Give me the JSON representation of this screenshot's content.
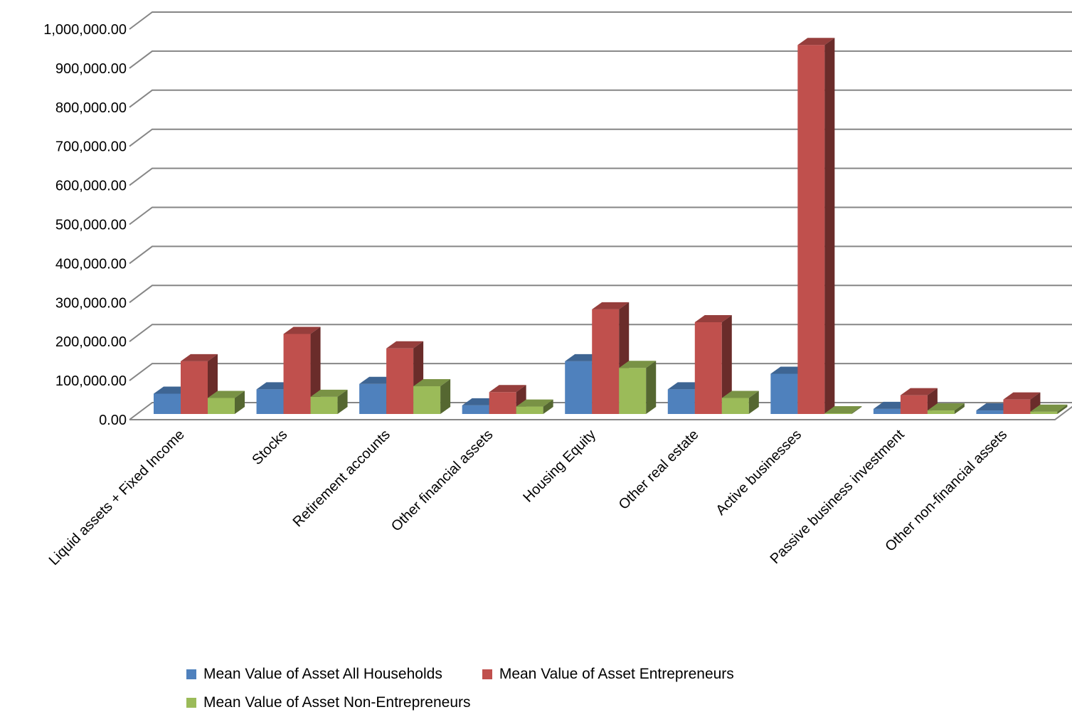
{
  "chart_data": {
    "type": "bar",
    "categories": [
      "Liquid assets + Fixed Income",
      "Stocks",
      "Retirement accounts",
      "Other financial assets",
      "Housing Equity",
      "Other real estate",
      "Active businesses",
      "Passive business investment",
      "Other non-financial assets"
    ],
    "series": [
      {
        "name": "Mean Value of Asset All Households",
        "color": "#4F81BD",
        "values": [
          52000,
          63000,
          77000,
          22000,
          135000,
          63000,
          103000,
          13000,
          9000
        ]
      },
      {
        "name": "Mean Value of Asset Entrepreneurs",
        "color": "#C0504D",
        "values": [
          135000,
          205000,
          168000,
          56000,
          268000,
          235000,
          945000,
          48000,
          37000
        ]
      },
      {
        "name": "Mean Value of Asset Non-Entrepreneurs",
        "color": "#9BBB59",
        "values": [
          41000,
          44000,
          71000,
          19000,
          118000,
          41000,
          500,
          9000,
          6000
        ]
      }
    ],
    "y_ticks": [
      "0.00",
      "100,000.00",
      "200,000.00",
      "300,000.00",
      "400,000.00",
      "500,000.00",
      "600,000.00",
      "700,000.00",
      "800,000.00",
      "900,000.00",
      "1,000,000.00"
    ],
    "ylim": [
      0,
      1000000
    ],
    "grid": true,
    "legend": "bottom",
    "style": "3d-clustered-column"
  }
}
